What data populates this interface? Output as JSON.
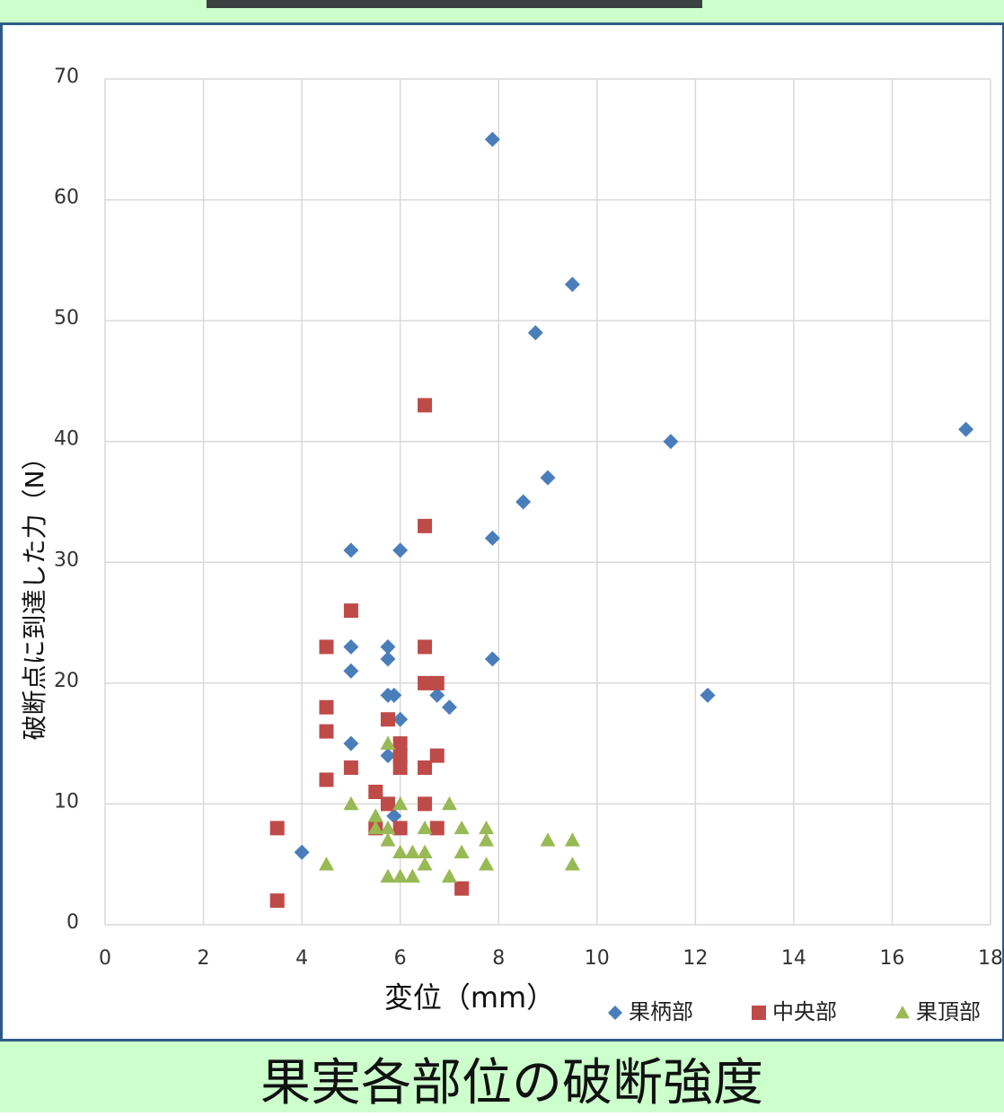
{
  "caption": "果実各部位の破断強度",
  "chart_data": {
    "type": "scatter",
    "xlabel": "変位（mm）",
    "ylabel": "破断点に到達した力（N）",
    "xlim": [
      0,
      18
    ],
    "xticks": [
      0,
      2,
      4,
      6,
      8,
      10,
      12,
      14,
      16,
      18
    ],
    "ylim": [
      0,
      70
    ],
    "yticks": [
      0,
      10,
      20,
      30,
      40,
      50,
      60,
      70
    ],
    "grid": true,
    "legend": "bottom-right",
    "series": [
      {
        "name": "果柄部",
        "color": "#4a7ebb",
        "marker": "diamond",
        "x": [
          7.875,
          9.5,
          8.75,
          11.5,
          17.5,
          9,
          8.5,
          7.875,
          5,
          6,
          5,
          5.75,
          5.75,
          7.875,
          5,
          5.75,
          5.875,
          6.75,
          7,
          12.25,
          6,
          5,
          5.75,
          5.875,
          4
        ],
        "values": [
          65,
          53,
          49,
          40,
          41,
          37,
          35,
          32,
          31,
          31,
          23,
          23,
          22,
          22,
          21,
          19,
          19,
          19,
          18,
          19,
          17,
          15,
          14,
          9,
          6
        ]
      },
      {
        "name": "中央部",
        "color": "#be4b48",
        "marker": "square",
        "x": [
          6.5,
          6.5,
          5,
          4.5,
          6.5,
          6.5,
          6.75,
          4.5,
          5.75,
          4.5,
          6,
          6,
          6.75,
          5,
          6,
          6.5,
          4.5,
          5.5,
          5.75,
          6.5,
          3.5,
          5.5,
          6,
          6.75,
          7.25,
          3.5
        ],
        "values": [
          43,
          33,
          26,
          23,
          23,
          20,
          20,
          18,
          17,
          16,
          15,
          14,
          14,
          13,
          13,
          13,
          12,
          11,
          10,
          10,
          8,
          8,
          8,
          8,
          3,
          2
        ]
      },
      {
        "name": "果頂部",
        "color": "#98b954",
        "marker": "triangle",
        "x": [
          5.75,
          5,
          6,
          7,
          5.5,
          5.5,
          5.75,
          6.5,
          7.25,
          7.75,
          5.75,
          7.75,
          9,
          9.5,
          6,
          6.25,
          6.5,
          7.25,
          4.5,
          6.5,
          7.75,
          9.5,
          5.75,
          6,
          6.25,
          7
        ],
        "values": [
          15,
          10,
          10,
          10,
          9,
          8,
          8,
          8,
          8,
          8,
          7,
          7,
          7,
          7,
          6,
          6,
          6,
          6,
          5,
          5,
          5,
          5,
          4,
          4,
          4,
          4
        ]
      }
    ]
  }
}
